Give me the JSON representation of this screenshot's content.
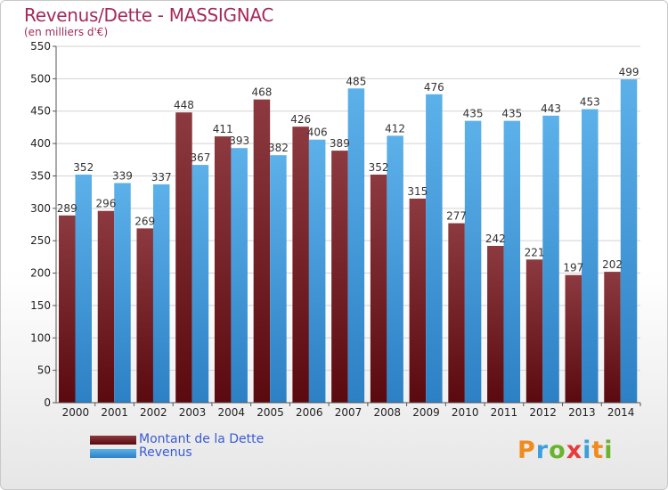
{
  "chart_data": {
    "type": "bar",
    "title": "Revenus/Dette - MASSIGNAC",
    "subtitle": "(en milliers d'€)",
    "categories": [
      "2000",
      "2001",
      "2002",
      "2003",
      "2004",
      "2005",
      "2006",
      "2007",
      "2008",
      "2009",
      "2010",
      "2011",
      "2012",
      "2013",
      "2014"
    ],
    "series": [
      {
        "name": "Montant de la Dette",
        "color": "#7a1f26",
        "values": [
          289,
          296,
          269,
          448,
          411,
          468,
          426,
          389,
          352,
          315,
          277,
          242,
          221,
          197,
          202
        ]
      },
      {
        "name": "Revenus",
        "color": "#4fa3e0",
        "values": [
          352,
          339,
          337,
          367,
          393,
          382,
          406,
          485,
          412,
          476,
          435,
          435,
          443,
          453,
          499
        ]
      }
    ],
    "ylim": [
      0,
      550
    ],
    "yticks": [
      0,
      50,
      100,
      150,
      200,
      250,
      300,
      350,
      400,
      450,
      500,
      550
    ],
    "grid": true,
    "legend": "bottom-left"
  },
  "legend": {
    "debt_label": "Montant de la Dette",
    "revenue_label": "Revenus"
  },
  "logo": {
    "letters": [
      "P",
      "r",
      "o",
      "x",
      "i",
      "t",
      "i"
    ],
    "colors": [
      "#f08c1e",
      "#3aa0dc",
      "#6ab42d",
      "#e63c3c",
      "#3aa0dc",
      "#f08c1e",
      "#6ab42d"
    ]
  }
}
